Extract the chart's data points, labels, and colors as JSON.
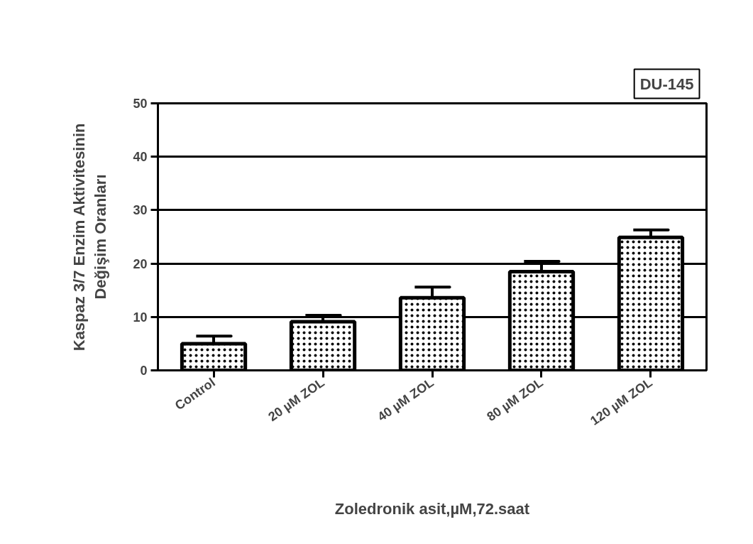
{
  "chart_data": {
    "type": "bar",
    "title": "DU-145",
    "xlabel": "Zoledronik asit,µM,72.saat",
    "ylabel": "Kaspaz 3/7 Enzim Aktivitesinin\nDeğişim Oranları",
    "categories": [
      "Control",
      "20 µM ZOL",
      "40 µM ZOL",
      "80 µM ZOL",
      "120 µM ZOL"
    ],
    "values": [
      5.0,
      9.1,
      13.6,
      18.5,
      24.9
    ],
    "errors": [
      1.4,
      1.2,
      2.0,
      1.9,
      1.4
    ],
    "color": "#ffffff",
    "ylim": [
      0,
      50
    ],
    "yticks": [
      0,
      10,
      20,
      30,
      40,
      50
    ],
    "grid": "y"
  }
}
